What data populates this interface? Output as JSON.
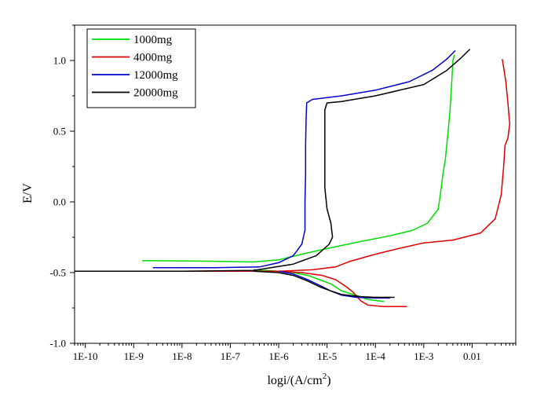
{
  "chart_data": {
    "type": "line",
    "title": "",
    "xlabel": "logi/(A/cm",
    "xlabel_superscript": "2",
    "xlabel_suffix": ")",
    "ylabel": "E/V",
    "x_scale": "log",
    "xlim": [
      6e-11,
      0.08
    ],
    "ylim": [
      -1.0,
      1.25
    ],
    "x_ticks": [
      1e-10,
      1e-09,
      1e-08,
      1e-07,
      1e-06,
      1e-05,
      0.0001,
      0.001,
      0.01
    ],
    "x_tick_labels": [
      "1E-10",
      "1E-9",
      "1E-8",
      "1E-7",
      "1E-6",
      "1E-5",
      "1E-4",
      "1E-3",
      "0.01"
    ],
    "y_ticks": [
      -1.0,
      -0.5,
      0.0,
      0.5,
      1.0
    ],
    "y_tick_labels": [
      "-1.0",
      "-0.5",
      "0.0",
      "0.5",
      "1.0"
    ],
    "grid": false,
    "legend_position": "top-left",
    "series": [
      {
        "name": "1000mg",
        "color": "#00dd00",
        "points": [
          [
            1.5e-09,
            -0.415
          ],
          [
            5e-08,
            -0.42
          ],
          [
            3e-07,
            -0.425
          ],
          [
            1e-06,
            -0.41
          ],
          [
            3e-06,
            -0.37
          ],
          [
            1e-05,
            -0.33
          ],
          [
            5e-05,
            -0.28
          ],
          [
            0.0002,
            -0.24
          ],
          [
            0.0006,
            -0.2
          ],
          [
            0.0012,
            -0.15
          ],
          [
            0.002,
            -0.05
          ],
          [
            0.0023,
            0.1
          ],
          [
            0.0025,
            0.2
          ],
          [
            0.0028,
            0.3
          ],
          [
            0.0032,
            0.5
          ],
          [
            0.0035,
            0.65
          ],
          [
            0.0038,
            0.85
          ],
          [
            0.004,
            1.0
          ],
          [
            0.0043,
            1.04
          ]
        ],
        "cathodic_points": [
          [
            3e-07,
            -0.48
          ],
          [
            1e-06,
            -0.49
          ],
          [
            2e-06,
            -0.5
          ],
          [
            4e-06,
            -0.52
          ],
          [
            7e-06,
            -0.55
          ],
          [
            1.2e-05,
            -0.58
          ],
          [
            2e-05,
            -0.63
          ],
          [
            4e-05,
            -0.66
          ],
          [
            7e-05,
            -0.69
          ],
          [
            0.00015,
            -0.705
          ]
        ]
      },
      {
        "name": "4000mg",
        "color": "#dd0000",
        "points": [
          [
            3e-10,
            -0.49
          ],
          [
            1e-08,
            -0.49
          ],
          [
            1e-07,
            -0.49
          ],
          [
            1e-06,
            -0.49
          ],
          [
            5e-06,
            -0.48
          ],
          [
            1.5e-05,
            -0.46
          ],
          [
            3e-05,
            -0.42
          ],
          [
            0.0001,
            -0.37
          ],
          [
            0.0003,
            -0.33
          ],
          [
            0.001,
            -0.29
          ],
          [
            0.004,
            -0.27
          ],
          [
            0.015,
            -0.22
          ],
          [
            0.03,
            -0.12
          ],
          [
            0.04,
            0.05
          ],
          [
            0.045,
            0.25
          ],
          [
            0.048,
            0.4
          ],
          [
            0.055,
            0.45
          ],
          [
            0.06,
            0.55
          ],
          [
            0.055,
            0.7
          ],
          [
            0.05,
            0.85
          ],
          [
            0.045,
            0.95
          ],
          [
            0.042,
            1.01
          ]
        ],
        "cathodic_points": [
          [
            1e-06,
            -0.49
          ],
          [
            3e-06,
            -0.5
          ],
          [
            8e-06,
            -0.52
          ],
          [
            1.5e-05,
            -0.55
          ],
          [
            2.5e-05,
            -0.6
          ],
          [
            3.5e-05,
            -0.64
          ],
          [
            5e-05,
            -0.7
          ],
          [
            7e-05,
            -0.73
          ],
          [
            0.00015,
            -0.74
          ],
          [
            0.00045,
            -0.74
          ]
        ]
      },
      {
        "name": "12000mg",
        "color": "#0000cc",
        "points": [
          [
            2.5e-09,
            -0.465
          ],
          [
            5e-08,
            -0.465
          ],
          [
            4e-07,
            -0.46
          ],
          [
            1e-06,
            -0.43
          ],
          [
            2e-06,
            -0.38
          ],
          [
            3e-06,
            -0.3
          ],
          [
            3.5e-06,
            -0.2
          ],
          [
            3.5e-06,
            0.0
          ],
          [
            3.6e-06,
            0.2
          ],
          [
            3.6e-06,
            0.4
          ],
          [
            3.7e-06,
            0.6
          ],
          [
            3.8e-06,
            0.7
          ],
          [
            5e-06,
            0.725
          ],
          [
            2e-05,
            0.75
          ],
          [
            0.0001,
            0.79
          ],
          [
            0.0005,
            0.85
          ],
          [
            0.0015,
            0.93
          ],
          [
            0.003,
            1.01
          ],
          [
            0.0045,
            1.07
          ]
        ],
        "cathodic_points": [
          [
            1e-06,
            -0.49
          ],
          [
            2e-06,
            -0.51
          ],
          [
            4e-06,
            -0.55
          ],
          [
            7e-06,
            -0.59
          ],
          [
            1.2e-05,
            -0.63
          ],
          [
            2e-05,
            -0.66
          ],
          [
            4e-05,
            -0.675
          ],
          [
            0.0001,
            -0.68
          ],
          [
            0.0002,
            -0.68
          ]
        ]
      },
      {
        "name": "20000mg",
        "color": "#000000",
        "points": [
          [
            6e-11,
            -0.49
          ],
          [
            1e-08,
            -0.49
          ],
          [
            3e-07,
            -0.485
          ],
          [
            2e-06,
            -0.44
          ],
          [
            6e-06,
            -0.38
          ],
          [
            1.1e-05,
            -0.3
          ],
          [
            1.3e-05,
            -0.25
          ],
          [
            1.2e-05,
            -0.15
          ],
          [
            1e-05,
            -0.05
          ],
          [
            9e-06,
            0.1
          ],
          [
            9e-06,
            0.3
          ],
          [
            9e-06,
            0.5
          ],
          [
            9e-06,
            0.65
          ],
          [
            1e-05,
            0.7
          ],
          [
            2e-05,
            0.71
          ],
          [
            0.0001,
            0.75
          ],
          [
            0.001,
            0.83
          ],
          [
            0.003,
            0.93
          ],
          [
            0.006,
            1.02
          ],
          [
            0.009,
            1.08
          ]
        ],
        "cathodic_points": [
          [
            3e-07,
            -0.49
          ],
          [
            1e-06,
            -0.5
          ],
          [
            2e-06,
            -0.52
          ],
          [
            4e-06,
            -0.56
          ],
          [
            7e-06,
            -0.6
          ],
          [
            1.2e-05,
            -0.63
          ],
          [
            2e-05,
            -0.655
          ],
          [
            5e-05,
            -0.67
          ],
          [
            0.0001,
            -0.675
          ],
          [
            0.00025,
            -0.675
          ]
        ]
      }
    ]
  }
}
